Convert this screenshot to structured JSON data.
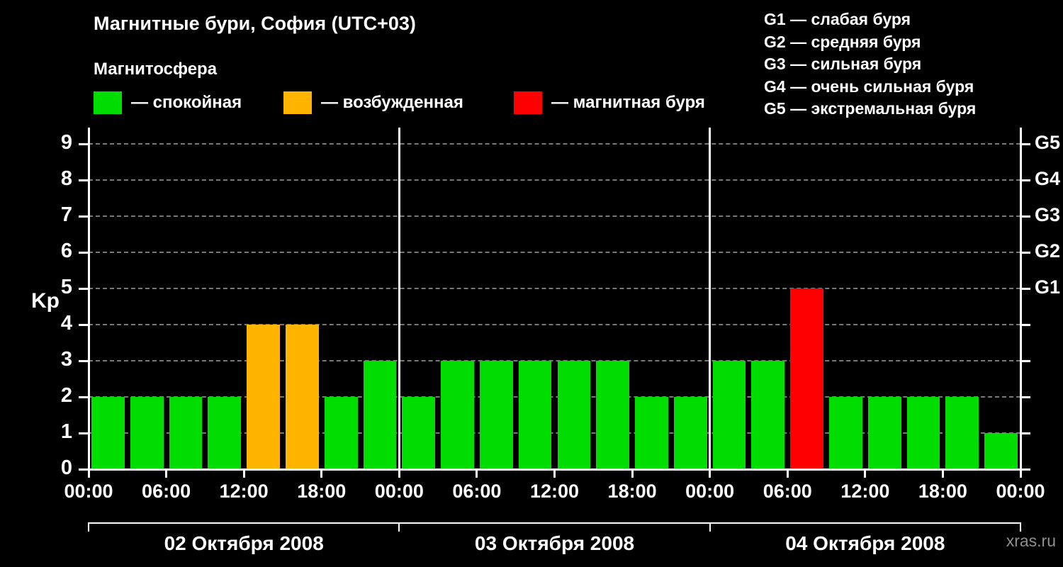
{
  "legend": {
    "title": "Магнитосфера",
    "items": [
      {
        "key": "quiet",
        "label": "— спокойная"
      },
      {
        "key": "excited",
        "label": "— возбужденная"
      },
      {
        "key": "storm",
        "label": "— магнитная буря"
      }
    ]
  },
  "storm_scale": {
    "items": [
      {
        "text": "G1 — слабая буря"
      },
      {
        "text": "G2 — средняя буря"
      },
      {
        "text": "G3 — сильная буря"
      },
      {
        "text": "G4 — очень сильная буря"
      },
      {
        "text": "G5 — экстремальная буря"
      }
    ]
  },
  "chart_data": {
    "type": "bar",
    "title": "Магнитные бури, София (UTC+03)",
    "ylabel": "Kp",
    "ylim": [
      0,
      9
    ],
    "yticks": [
      0,
      1,
      2,
      3,
      4,
      5,
      6,
      7,
      8,
      9
    ],
    "bar_interval_hours": 3,
    "x_tick_labels": [
      "00:00",
      "06:00",
      "12:00",
      "18:00"
    ],
    "x_final_label": "00:00",
    "right_axis": [
      {
        "label": "G5",
        "kp": 9
      },
      {
        "label": "G4",
        "kp": 8
      },
      {
        "label": "G3",
        "kp": 7
      },
      {
        "label": "G2",
        "kp": 6
      },
      {
        "label": "G1",
        "kp": 5
      }
    ],
    "days": [
      {
        "date": "02 Октября 2008",
        "values": [
          2,
          2,
          2,
          2,
          4,
          4,
          2,
          3
        ]
      },
      {
        "date": "03 Октября 2008",
        "values": [
          2,
          3,
          3,
          3,
          3,
          3,
          2,
          2
        ]
      },
      {
        "date": "04 Октября 2008",
        "values": [
          3,
          3,
          5,
          2,
          2,
          2,
          2,
          1
        ]
      }
    ],
    "thresholds": {
      "quiet_max": 3,
      "excited_max": 4
    },
    "colors": {
      "quiet": "#00dd00",
      "excited": "#ffb400",
      "storm": "#ff0000",
      "axis": "#ffffff",
      "grid": "#787878",
      "text": "#ffffff",
      "background": "#000000",
      "watermark": "#909090"
    },
    "legend_position": "top",
    "grid": "dashed-horizontal"
  },
  "footer": {
    "watermark": "xras.ru"
  }
}
